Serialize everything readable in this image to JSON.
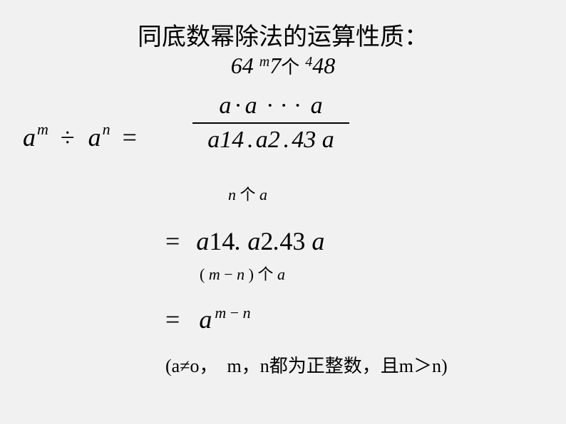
{
  "title": "同底数幂除法的运算性质：",
  "line2": {
    "a": "64",
    "m": "m",
    "slash": "7",
    "arrow": "个",
    "q": "4",
    "b": "48"
  },
  "lhs": {
    "a1": "a",
    "m": "m",
    "div": "÷",
    "a2": "a",
    "n": "n",
    "eq": "="
  },
  "frac": {
    "num": {
      "a1": "a",
      "d1": "·",
      "a2": "a",
      "d2": "·",
      "d3": "·",
      "d4": "·",
      "a3": "a"
    },
    "den": {
      "a1": "a",
      "d1": ".",
      "a2": "a",
      "d2": ".",
      "a3": "a"
    },
    "den_overlay": {
      "p1": "14",
      "p2": "2",
      "p3": "43"
    }
  },
  "sub_n": {
    "n": "n",
    "ge": "个",
    "a": "a"
  },
  "eq2": {
    "eq": "=",
    "a1": "a",
    "d1": ".",
    "a2": "a",
    "d2": ".",
    "a3": "a",
    "p1": "14",
    "p2": "2",
    "p3": "43"
  },
  "sub_mn": {
    "lp": "(",
    "m": "m",
    "minus": "−",
    "n": "n",
    "rp": ")",
    "ge": "个",
    "a": "a"
  },
  "eq3": {
    "eq": "=",
    "a": "a",
    "m": "m",
    "minus": "−",
    "n": "n"
  },
  "cond": {
    "lp": "(",
    "a": "a",
    "neq": "≠",
    "o": "o",
    "c1": "，",
    "m": "m",
    "c2": "，",
    "n": "n",
    "txt": "都为正整数，且",
    "m2": "m",
    "gt": "＞",
    "n2": "n",
    "rp": ")"
  },
  "colors": {
    "bg": "#f1f1f1",
    "text": "#000000"
  }
}
